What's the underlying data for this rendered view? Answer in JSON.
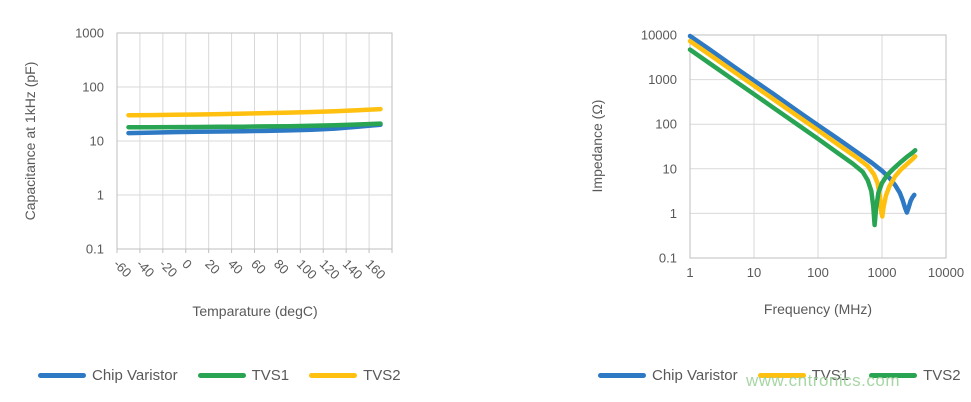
{
  "watermark": "www.cntronics.com",
  "colors": {
    "chip_varistor_blue": "#2E79C3",
    "green": "#28A452",
    "yellow": "#FFC010",
    "gridline": "#D9D9D9",
    "axis_line": "#BFBFBF",
    "text_gray": "#595959"
  },
  "chart_data": [
    {
      "id": "capacitance-vs-temperature",
      "type": "line",
      "x_type": "category",
      "xlabel": "Temparature (degC)",
      "ylabel": "Capacitance at 1kHz (pF)",
      "y_scale": "log",
      "ylim": [
        0.1,
        1000
      ],
      "y_ticks": [
        0.1,
        1,
        10,
        100,
        1000
      ],
      "grid": true,
      "legend_position": "bottom",
      "categories": [
        "-60",
        "-40",
        "-20",
        "0",
        "20",
        "40",
        "60",
        "80",
        "100",
        "120",
        "140",
        "160"
      ],
      "series": [
        {
          "name": "Chip Varistor",
          "color": "#2E79C3",
          "values": [
            14,
            14.3,
            14.6,
            14.8,
            15,
            15.2,
            15.4,
            15.7,
            16.1,
            17,
            18.3,
            20
          ]
        },
        {
          "name": "TVS1",
          "color": "#28A452",
          "values": [
            18,
            18,
            18.1,
            18.2,
            18.3,
            18.4,
            18.6,
            18.8,
            19.1,
            19.5,
            20.2,
            21
          ]
        },
        {
          "name": "TVS2",
          "color": "#FFC010",
          "values": [
            30,
            30.2,
            30.6,
            31,
            31.5,
            32.1,
            32.8,
            33.6,
            34.5,
            35.6,
            37.2,
            39
          ]
        }
      ]
    },
    {
      "id": "impedance-vs-frequency",
      "type": "line",
      "x_type": "log",
      "xlabel": "Frequency (MHz)",
      "ylabel": "Impedance (Ω)",
      "x_scale": "log",
      "y_scale": "log",
      "xlim": [
        1,
        10000
      ],
      "ylim": [
        0.1,
        10000
      ],
      "x_ticks": [
        1,
        10,
        100,
        1000,
        10000
      ],
      "y_ticks": [
        0.1,
        1,
        10,
        100,
        1000,
        10000
      ],
      "grid": true,
      "legend_position": "bottom",
      "series": [
        {
          "name": "Chip Varistor",
          "color": "#2E79C3",
          "points": [
            [
              1,
              9500
            ],
            [
              2,
              4800
            ],
            [
              5,
              1900
            ],
            [
              10,
              950
            ],
            [
              20,
              480
            ],
            [
              50,
              190
            ],
            [
              100,
              95
            ],
            [
              200,
              48
            ],
            [
              400,
              24
            ],
            [
              700,
              13.5
            ],
            [
              1000,
              9
            ],
            [
              1300,
              6.3
            ],
            [
              1600,
              4.3
            ],
            [
              1900,
              2.9
            ],
            [
              2100,
              2.0
            ],
            [
              2300,
              1.3
            ],
            [
              2450,
              1.05
            ],
            [
              2600,
              1.35
            ],
            [
              2800,
              1.9
            ],
            [
              3000,
              2.3
            ],
            [
              3200,
              2.6
            ]
          ]
        },
        {
          "name": "TVS1",
          "color": "#FFC010",
          "points": [
            [
              1,
              7300
            ],
            [
              2,
              3650
            ],
            [
              5,
              1460
            ],
            [
              10,
              730
            ],
            [
              20,
              365
            ],
            [
              50,
              146
            ],
            [
              100,
              73
            ],
            [
              200,
              36
            ],
            [
              400,
              18
            ],
            [
              600,
              11.5
            ],
            [
              750,
              7.5
            ],
            [
              850,
              4.8
            ],
            [
              920,
              2.6
            ],
            [
              970,
              1.1
            ],
            [
              1010,
              0.85
            ],
            [
              1060,
              1.4
            ],
            [
              1150,
              2.5
            ],
            [
              1300,
              4
            ],
            [
              1600,
              6.8
            ],
            [
              2000,
              9.8
            ],
            [
              2500,
              13
            ],
            [
              3000,
              16.5
            ],
            [
              3300,
              19
            ]
          ]
        },
        {
          "name": "TVS2",
          "color": "#28A452",
          "points": [
            [
              1,
              4700
            ],
            [
              2,
              2350
            ],
            [
              5,
              940
            ],
            [
              10,
              470
            ],
            [
              20,
              235
            ],
            [
              50,
              94
            ],
            [
              100,
              47
            ],
            [
              200,
              23
            ],
            [
              350,
              13
            ],
            [
              500,
              8.5
            ],
            [
              600,
              5.5
            ],
            [
              680,
              3.2
            ],
            [
              730,
              1.4
            ],
            [
              765,
              0.55
            ],
            [
              810,
              1.3
            ],
            [
              880,
              2.9
            ],
            [
              1000,
              4.8
            ],
            [
              1200,
              7.2
            ],
            [
              1500,
              10
            ],
            [
              2000,
              14.5
            ],
            [
              2500,
              19
            ],
            [
              3000,
              23
            ],
            [
              3300,
              26
            ]
          ]
        }
      ]
    }
  ]
}
